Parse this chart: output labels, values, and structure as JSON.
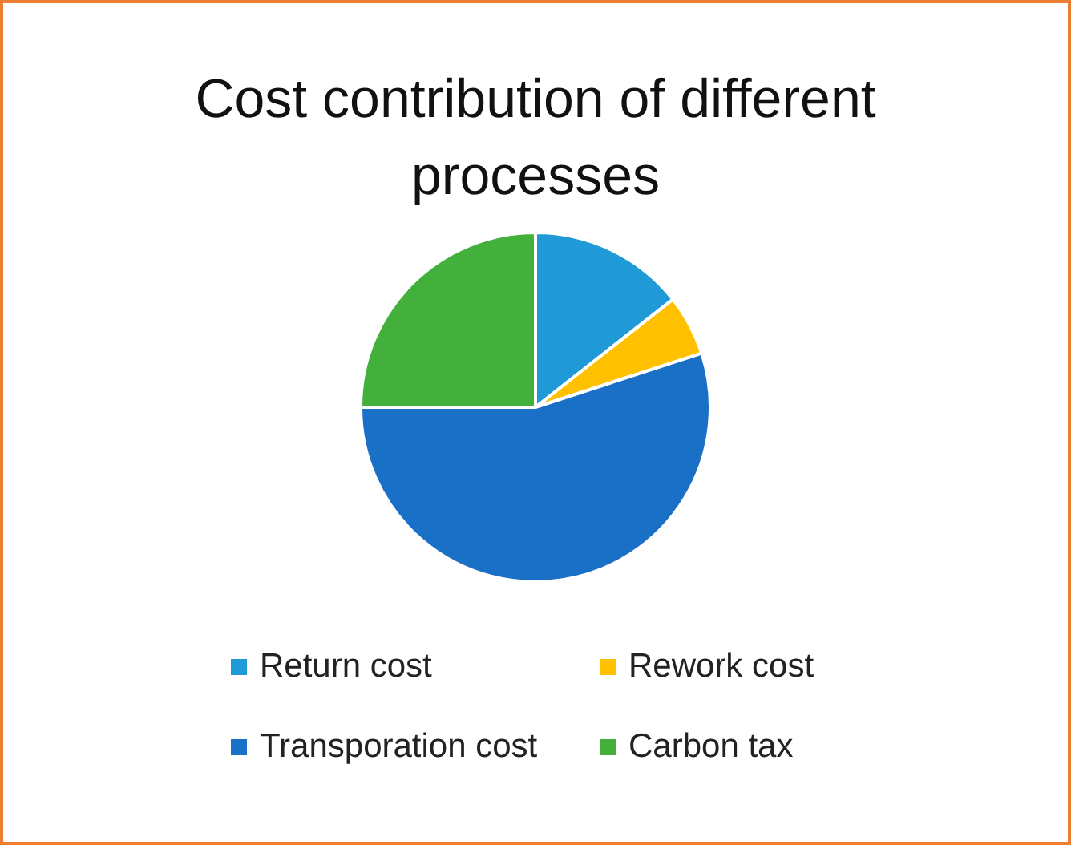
{
  "chart_data": {
    "type": "pie",
    "title": "Cost contribution of different processes",
    "categories": [
      "Return cost",
      "Rework cost",
      "Transporation cost",
      "Carbon tax"
    ],
    "values": [
      14.4,
      5.6,
      55,
      25
    ],
    "colors": [
      "#1f9ad6",
      "#ffc000",
      "#1a6fc7",
      "#42b03a"
    ],
    "legend": "bottom"
  }
}
